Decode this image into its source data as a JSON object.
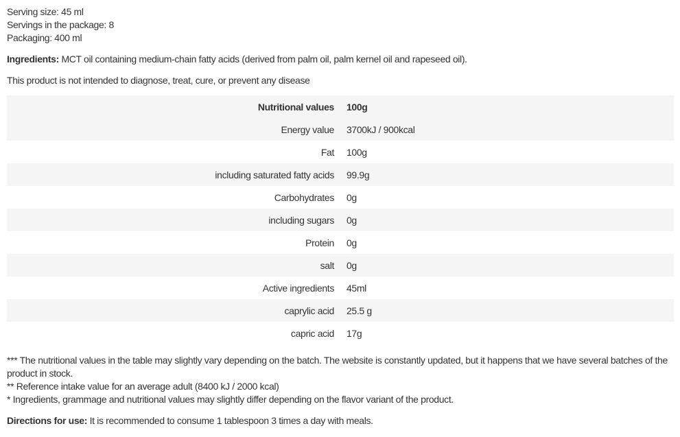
{
  "info": {
    "serving_size": "Serving size: 45 ml",
    "servings": "Servings in the package: 8",
    "packaging": "Packaging: 400 ml"
  },
  "ingredients": {
    "label": "Ingredients:",
    "text": " MCT oil containing medium-chain fatty acids (derived from palm oil, palm kernel oil and rapeseed oil)."
  },
  "disclaimer": "This product is not intended to diagnose, treat, cure, or prevent any disease",
  "table": {
    "header": {
      "label": "Nutritional values",
      "value": "100g"
    },
    "rows": [
      {
        "label": "Energy value",
        "value": "3700kJ / 900kcal"
      },
      {
        "label": "Fat",
        "value": "100g"
      },
      {
        "label": "including saturated fatty acids",
        "value": "99.9g"
      },
      {
        "label": "Carbohydrates",
        "value": "0g"
      },
      {
        "label": "including sugars",
        "value": "0g"
      },
      {
        "label": "Protein",
        "value": "0g"
      },
      {
        "label": "salt",
        "value": "0g"
      },
      {
        "label": "Active ingredients",
        "value": "45ml"
      },
      {
        "label": "caprylic acid",
        "value": "25.5 g"
      },
      {
        "label": "capric acid",
        "value": "17g"
      }
    ]
  },
  "notes": [
    "*** The nutritional values in the table may slightly vary depending on the batch. The website is constantly updated, but it happens that we have several batches of the product in stock.",
    "** Reference intake value for an average adult (8400 kJ / 2000 kcal)",
    "* Ingredients, grammage and nutritional values may slightly differ depending on the flavor variant of the product."
  ],
  "directions": {
    "label": "Directions for use:",
    "text": " It is recommended to consume 1 tablespoon 3 times a day with meals."
  }
}
